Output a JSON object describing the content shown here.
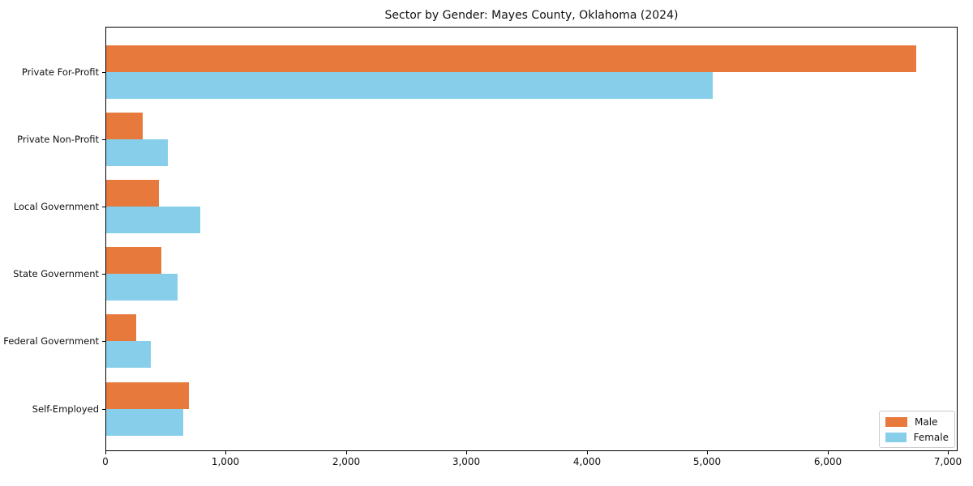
{
  "figure": {
    "background": "#ffffff",
    "axis_color": "#000000",
    "legend_border_color": "#cccccc"
  },
  "chart_data": {
    "type": "bar",
    "orientation": "horizontal",
    "title": "Sector by Gender: Mayes County, Oklahoma (2024)",
    "categories": [
      "Private For-Profit",
      "Private Non-Profit",
      "Local Government",
      "State Government",
      "Federal Government",
      "Self-Employed"
    ],
    "series": [
      {
        "name": "Male",
        "color": "#e8793d",
        "values": [
          6730,
          300,
          440,
          460,
          250,
          690
        ]
      },
      {
        "name": "Female",
        "color": "#87ceeb",
        "values": [
          5040,
          510,
          780,
          590,
          370,
          640
        ]
      }
    ],
    "xlabel": "",
    "ylabel": "",
    "xlim": [
      0,
      7065
    ],
    "xticks": [
      0,
      1000,
      2000,
      3000,
      4000,
      5000,
      6000,
      7000
    ],
    "xtick_labels": [
      "0",
      "1,000",
      "2,000",
      "3,000",
      "4,000",
      "5,000",
      "6,000",
      "7,000"
    ],
    "grid": false,
    "legend_position": "lower right"
  }
}
